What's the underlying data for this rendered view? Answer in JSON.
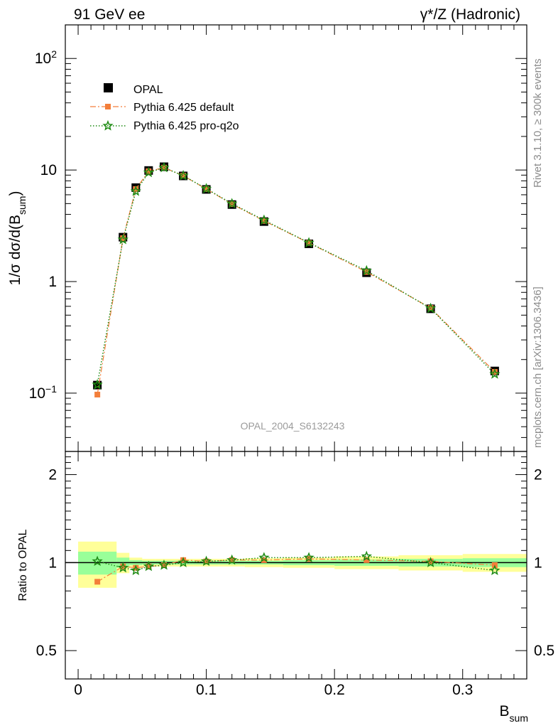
{
  "header": {
    "left": "91 GeV ee",
    "right": "γ*/Z (Hadronic)"
  },
  "side_text": {
    "rivet": "Rivet 3.1.10, ≥ 300k events",
    "mcplots": "mcplots.cern.ch [arXiv:1306.3436]"
  },
  "analysis_label": "OPAL_2004_S6132243",
  "chart_data": [
    {
      "type": "scatter",
      "panel": "main",
      "title": "",
      "ylabel": "1/σ dσ/d(B_sum)",
      "yscale": "log",
      "ylim": [
        0.03,
        200
      ],
      "xlim": [
        -0.01,
        0.35
      ],
      "yticks": [
        {
          "value": 0.1,
          "base": "10",
          "exp": "−1"
        },
        {
          "value": 1,
          "label": "1"
        },
        {
          "value": 10,
          "label": "10"
        },
        {
          "value": 100,
          "base": "10",
          "exp": "2"
        }
      ],
      "legend": {
        "placement": "top-left",
        "entries": [
          "OPAL",
          "Pythia 6.425 default",
          "Pythia 6.425 pro-q2o"
        ]
      },
      "x": [
        0.015,
        0.035,
        0.045,
        0.055,
        0.067,
        0.082,
        0.1,
        0.12,
        0.145,
        0.18,
        0.225,
        0.275,
        0.325
      ],
      "series": [
        {
          "name": "OPAL",
          "color": "#000000",
          "marker": "square",
          "values": [
            0.118,
            2.5,
            6.95,
            9.9,
            10.7,
            8.85,
            6.7,
            4.9,
            3.45,
            2.18,
            1.2,
            0.57,
            0.158
          ]
        },
        {
          "name": "Pythia 6.425 default",
          "color": "#f37e3a",
          "marker": "filled-square-small",
          "line": "dash-dot",
          "values": [
            0.097,
            2.45,
            6.75,
            9.75,
            10.5,
            8.9,
            6.75,
            4.95,
            3.5,
            2.22,
            1.22,
            0.58,
            0.155
          ]
        },
        {
          "name": "Pythia 6.425 pro-q2o",
          "color": "#1d8a12",
          "marker": "open-star",
          "line": "dotted",
          "values": [
            0.119,
            2.38,
            6.45,
            9.5,
            10.5,
            8.9,
            6.8,
            5.0,
            3.55,
            2.23,
            1.25,
            0.575,
            0.148
          ]
        }
      ]
    },
    {
      "type": "scatter",
      "panel": "ratio",
      "ylabel": "Ratio to OPAL",
      "xlabel": "B_sum",
      "yscale": "log",
      "ylim": [
        0.4,
        2.4
      ],
      "xlim": [
        -0.01,
        0.35
      ],
      "yticks": [
        {
          "value": 0.5,
          "label": "0.5"
        },
        {
          "value": 1,
          "label": "1"
        },
        {
          "value": 2,
          "label": "2"
        }
      ],
      "xticks": [
        {
          "value": 0,
          "label": "0"
        },
        {
          "value": 0.1,
          "label": "0.1"
        },
        {
          "value": 0.2,
          "label": "0.2"
        },
        {
          "value": 0.3,
          "label": "0.3"
        }
      ],
      "bins": [
        {
          "lo": 0.0,
          "hi": 0.03,
          "stat": 0.09,
          "total": 0.18
        },
        {
          "lo": 0.03,
          "hi": 0.04,
          "stat": 0.04,
          "total": 0.08
        },
        {
          "lo": 0.04,
          "hi": 0.05,
          "stat": 0.02,
          "total": 0.04
        },
        {
          "lo": 0.05,
          "hi": 0.06,
          "stat": 0.015,
          "total": 0.03
        },
        {
          "lo": 0.06,
          "hi": 0.075,
          "stat": 0.015,
          "total": 0.03
        },
        {
          "lo": 0.075,
          "hi": 0.09,
          "stat": 0.015,
          "total": 0.03
        },
        {
          "lo": 0.09,
          "hi": 0.11,
          "stat": 0.015,
          "total": 0.03
        },
        {
          "lo": 0.11,
          "hi": 0.13,
          "stat": 0.015,
          "total": 0.03
        },
        {
          "lo": 0.13,
          "hi": 0.16,
          "stat": 0.015,
          "total": 0.035
        },
        {
          "lo": 0.16,
          "hi": 0.2,
          "stat": 0.02,
          "total": 0.04
        },
        {
          "lo": 0.2,
          "hi": 0.25,
          "stat": 0.025,
          "total": 0.05
        },
        {
          "lo": 0.25,
          "hi": 0.3,
          "stat": 0.03,
          "total": 0.06
        },
        {
          "lo": 0.3,
          "hi": 0.35,
          "stat": 0.035,
          "total": 0.07
        }
      ],
      "x": [
        0.015,
        0.035,
        0.045,
        0.055,
        0.067,
        0.082,
        0.1,
        0.12,
        0.145,
        0.18,
        0.225,
        0.275,
        0.325
      ],
      "series": [
        {
          "name": "Pythia 6.425 default",
          "color": "#f37e3a",
          "marker": "filled-square-small",
          "line": "dash-dot",
          "values": [
            0.86,
            0.97,
            0.96,
            0.97,
            0.98,
            1.02,
            1.01,
            1.02,
            1.02,
            1.03,
            1.02,
            1.01,
            0.98
          ]
        },
        {
          "name": "Pythia 6.425 pro-q2o",
          "color": "#1d8a12",
          "marker": "open-star",
          "line": "dotted",
          "values": [
            1.01,
            0.96,
            0.94,
            0.97,
            0.98,
            1.0,
            1.01,
            1.02,
            1.04,
            1.04,
            1.05,
            1.0,
            0.94
          ]
        }
      ]
    }
  ]
}
